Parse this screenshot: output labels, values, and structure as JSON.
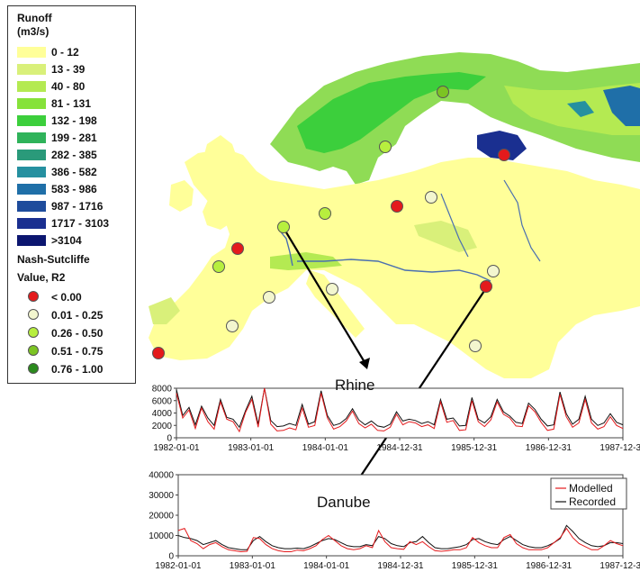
{
  "legend": {
    "runoff_title_line1": "Runoff",
    "runoff_title_line2": "(m3/s)",
    "runoff_classes": [
      {
        "label": "0 - 12",
        "color": "#ffff99"
      },
      {
        "label": "13 - 39",
        "color": "#d9f07a"
      },
      {
        "label": "40 - 80",
        "color": "#b4ea52"
      },
      {
        "label": "81 - 131",
        "color": "#86e23a"
      },
      {
        "label": "132 - 198",
        "color": "#3ccf3c"
      },
      {
        "label": "199 - 281",
        "color": "#2fb35a"
      },
      {
        "label": "282 - 385",
        "color": "#2a9a7a"
      },
      {
        "label": "386 - 582",
        "color": "#2590a0"
      },
      {
        "label": "583 - 986",
        "color": "#1f6fa8"
      },
      {
        "label": "987 - 1716",
        "color": "#1e4c9c"
      },
      {
        "label": "1717 - 3103",
        "color": "#1a2f90"
      },
      {
        "label": ">3104",
        "color": "#0c1670"
      }
    ],
    "ns_title_line1": "Nash-Sutcliffe",
    "ns_title_line2": "Value, R2",
    "ns_classes": [
      {
        "label": "< 0.00",
        "color": "#e41a1c"
      },
      {
        "label": "0.01 - 0.25",
        "color": "#f3f6cf"
      },
      {
        "label": "0.26 - 0.50",
        "color": "#b7ef3e"
      },
      {
        "label": "0.51 - 0.75",
        "color": "#7cc423"
      },
      {
        "label": "0.76 - 1.00",
        "color": "#2a8a1c"
      }
    ]
  },
  "map": {
    "stations": [
      {
        "class": "0.51 - 0.75"
      },
      {
        "class": "0.26 - 0.50"
      },
      {
        "class": "< 0.00"
      },
      {
        "class": "0.01 - 0.25"
      },
      {
        "class": "< 0.00"
      },
      {
        "class": "0.26 - 0.50"
      },
      {
        "class": "0.26 - 0.50"
      },
      {
        "class": "< 0.00"
      },
      {
        "class": "0.26 - 0.50"
      },
      {
        "class": "0.01 - 0.25"
      },
      {
        "class": "0.01 - 0.25"
      },
      {
        "class": "0.01 - 0.25"
      },
      {
        "class": "0.01 - 0.25"
      },
      {
        "class": "< 0.00"
      },
      {
        "class": "< 0.00"
      },
      {
        "class": "0.01 - 0.25"
      }
    ]
  },
  "chart_data": [
    {
      "type": "line",
      "title": "Rhine",
      "x_ticks": [
        "1982-01-01",
        "1983-01-01",
        "1984-01-01",
        "1984-12-31",
        "1985-12-31",
        "1986-12-31",
        "1987-12-31"
      ],
      "ylim": [
        0,
        8000
      ],
      "y_ticks": [
        0,
        2000,
        4000,
        6000,
        8000
      ],
      "series": [
        {
          "name": "Modelled",
          "color": "#e41a1c",
          "values": [
            7200,
            3200,
            4500,
            1500,
            4800,
            2600,
            1400,
            5800,
            3000,
            2600,
            1000,
            4100,
            6200,
            1700,
            8000,
            2200,
            1100,
            1200,
            1600,
            1300,
            4800,
            1700,
            2000,
            7200,
            3200,
            1400,
            1800,
            2700,
            4300,
            2300,
            1600,
            2200,
            1200,
            1100,
            1700,
            3800,
            2100,
            2600,
            2400,
            1800,
            2100,
            1500,
            5800,
            2500,
            2800,
            1200,
            1300,
            6000,
            2600,
            1800,
            2900,
            5800,
            3800,
            3200,
            1900,
            1800,
            5200,
            4200,
            2500,
            1200,
            1400,
            7000,
            3400,
            1700,
            2400,
            6200,
            2400,
            1400,
            1800,
            3400,
            2000,
            1500
          ]
        },
        {
          "name": "Recorded",
          "color": "#111111",
          "values": [
            7800,
            3600,
            4900,
            2100,
            5100,
            3200,
            2000,
            6200,
            3300,
            3000,
            1700,
            4400,
            6700,
            2200,
            8500,
            2800,
            1800,
            1900,
            2300,
            2000,
            5400,
            2200,
            2600,
            7600,
            3600,
            2000,
            2300,
            3100,
            4700,
            2900,
            2100,
            2700,
            1900,
            1700,
            2200,
            4200,
            2700,
            3000,
            2800,
            2300,
            2600,
            2100,
            6200,
            3000,
            3200,
            1900,
            2000,
            6500,
            3000,
            2400,
            3400,
            6200,
            4200,
            3500,
            2500,
            2300,
            5600,
            4600,
            3000,
            1900,
            2100,
            7400,
            3900,
            2200,
            3000,
            6700,
            3000,
            2000,
            2400,
            3900,
            2500,
            2100
          ]
        }
      ]
    },
    {
      "type": "line",
      "title": "Danube",
      "x_ticks": [
        "1982-01-01",
        "1983-01-01",
        "1984-01-01",
        "1984-12-31",
        "1985-12-31",
        "1986-12-31",
        "1987-12-31"
      ],
      "ylim": [
        0,
        40000
      ],
      "y_ticks": [
        0,
        10000,
        20000,
        30000,
        40000
      ],
      "legend": [
        "Modelled",
        "Recorded"
      ],
      "series": [
        {
          "name": "Modelled",
          "color": "#e41a1c",
          "values": [
            12500,
            13500,
            7500,
            6000,
            3500,
            5500,
            6500,
            4500,
            3000,
            2500,
            2000,
            2200,
            9000,
            8500,
            5500,
            3500,
            2500,
            2000,
            2000,
            2800,
            2500,
            3500,
            5000,
            8000,
            10000,
            7500,
            5000,
            3500,
            3000,
            3500,
            5000,
            4000,
            12500,
            7000,
            4000,
            3500,
            3200,
            7000,
            5500,
            7000,
            4500,
            2500,
            2200,
            2500,
            3000,
            3000,
            4000,
            9000,
            6500,
            5000,
            4000,
            4000,
            9000,
            10500,
            6000,
            4000,
            3000,
            3000,
            3000,
            4000,
            6500,
            9000,
            13500,
            9000,
            6000,
            4500,
            3000,
            3000,
            5000,
            7500,
            6000,
            5000
          ]
        },
        {
          "name": "Recorded",
          "color": "#111111",
          "values": [
            10000,
            9000,
            8500,
            7500,
            5500,
            6500,
            7500,
            5500,
            4000,
            3500,
            3000,
            3000,
            7500,
            9500,
            7000,
            5000,
            4000,
            3500,
            3500,
            3800,
            3500,
            4500,
            6000,
            7500,
            8500,
            8000,
            6500,
            5000,
            4500,
            4500,
            5500,
            5000,
            9500,
            8500,
            6000,
            5000,
            4500,
            6500,
            7000,
            9500,
            6500,
            4000,
            3500,
            3500,
            4000,
            4500,
            5500,
            8000,
            8500,
            7000,
            6000,
            5500,
            8000,
            9500,
            7500,
            5500,
            4500,
            4000,
            4000,
            5000,
            6500,
            8500,
            15000,
            12000,
            8500,
            6500,
            5000,
            4500,
            5000,
            6500,
            6500,
            6000
          ]
        }
      ]
    }
  ]
}
